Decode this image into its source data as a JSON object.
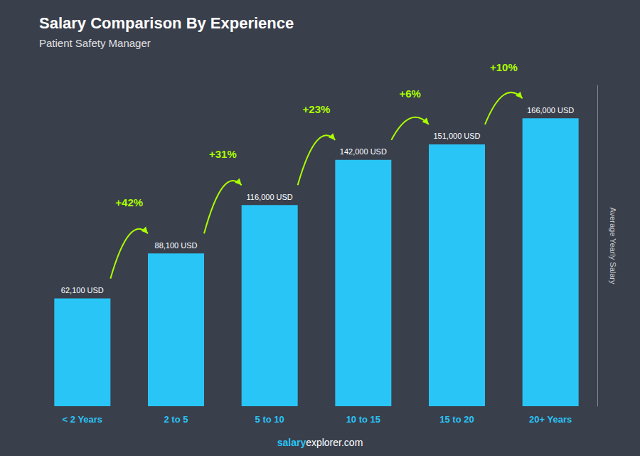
{
  "chart_data": {
    "type": "bar",
    "title": "Salary Comparison By Experience",
    "subtitle": "Patient Safety Manager",
    "categories": [
      "< 2 Years",
      "2 to 5",
      "5 to 10",
      "10 to 15",
      "15 to 20",
      "20+ Years"
    ],
    "values": [
      62100,
      88100,
      116000,
      142000,
      151000,
      166000
    ],
    "value_labels": [
      "62,100 USD",
      "88,100 USD",
      "116,000 USD",
      "142,000 USD",
      "151,000 USD",
      "166,000 USD"
    ],
    "data_labels": true,
    "color": "#29c5f6",
    "ylabel": "Average Yearly Salary",
    "ylim": [
      0,
      185000
    ],
    "yticks": [],
    "tick_labels": "x",
    "grid": false,
    "annotations": [
      {
        "text": "+42%",
        "color": "#aaff00"
      },
      {
        "text": "+31%",
        "color": "#aaff00"
      },
      {
        "text": "+23%",
        "color": "#aaff00"
      },
      {
        "text": "+6%",
        "color": "#aaff00"
      },
      {
        "text": "+10%",
        "color": "#aaff00"
      }
    ],
    "footer": [
      "salary",
      "explorer.com"
    ]
  }
}
